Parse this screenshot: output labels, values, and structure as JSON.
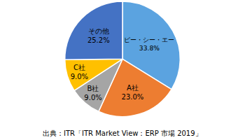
{
  "chart_data": {
    "type": "pie",
    "categories": [
      "ピー・シー・エー",
      "A社",
      "B社",
      "C社",
      "その他"
    ],
    "values": [
      33.8,
      23.0,
      9.0,
      9.0,
      25.2
    ],
    "value_labels": [
      "33.8%",
      "23.0%",
      "9.0%",
      "9.0%",
      "25.2%"
    ],
    "colors": [
      "#5ba3e0",
      "#ed7d31",
      "#a5a5a5",
      "#ffc000",
      "#4472c4"
    ],
    "data_labels": true,
    "annotations": [
      "出典：ITR「ITR Market View：ERP 市場 2019」"
    ]
  }
}
